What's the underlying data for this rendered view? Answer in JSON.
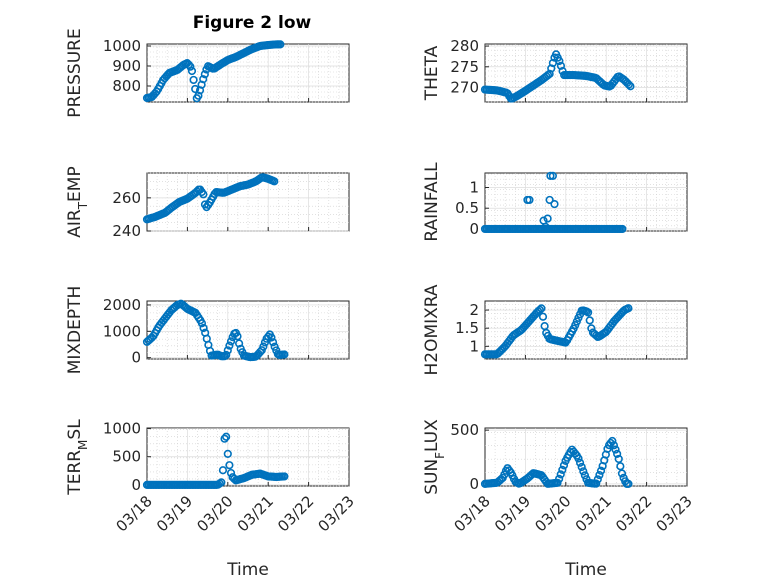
{
  "title": "Figure 2 low",
  "marker_color": "#0072BD",
  "chart_data": [
    {
      "type": "scatter",
      "ylabel": "PRESSURE",
      "xlabel": "",
      "xlim": [
        "03/18",
        "03/23"
      ],
      "ylim": [
        720,
        1010
      ],
      "yticks": [
        "800",
        "900",
        "1000"
      ],
      "xticks": [
        "03/18",
        "03/19",
        "03/20",
        "03/21",
        "03/22",
        "03/23"
      ],
      "keypoints": [
        [
          0,
          740
        ],
        [
          0.12,
          745
        ],
        [
          0.25,
          775
        ],
        [
          0.4,
          830
        ],
        [
          0.55,
          865
        ],
        [
          0.75,
          880
        ],
        [
          0.9,
          905
        ],
        [
          1.0,
          915
        ],
        [
          1.1,
          890
        ],
        [
          1.18,
          800
        ],
        [
          1.24,
          730
        ],
        [
          1.3,
          770
        ],
        [
          1.4,
          840
        ],
        [
          1.5,
          900
        ],
        [
          1.65,
          885
        ],
        [
          1.8,
          905
        ],
        [
          2.0,
          930
        ],
        [
          2.2,
          945
        ],
        [
          2.4,
          965
        ],
        [
          2.6,
          985
        ],
        [
          2.8,
          1000
        ],
        [
          3.0,
          1005
        ],
        [
          3.2,
          1008
        ],
        [
          3.3,
          1008
        ]
      ]
    },
    {
      "type": "scatter",
      "ylabel": "THETA",
      "xlabel": "",
      "xlim": [
        "03/18",
        "03/23"
      ],
      "ylim": [
        266.5,
        280.5
      ],
      "yticks": [
        "270",
        "275",
        "280"
      ],
      "xticks": [
        "03/18",
        "03/19",
        "03/20",
        "03/21",
        "03/22",
        "03/23"
      ],
      "keypoints": [
        [
          0,
          269.5
        ],
        [
          0.3,
          269.3
        ],
        [
          0.55,
          268.7
        ],
        [
          0.65,
          267.2
        ],
        [
          0.8,
          268.0
        ],
        [
          1.0,
          269.2
        ],
        [
          1.2,
          270.5
        ],
        [
          1.4,
          271.8
        ],
        [
          1.6,
          273.3
        ],
        [
          1.75,
          278.2
        ],
        [
          1.85,
          276.2
        ],
        [
          1.95,
          273.0
        ],
        [
          2.2,
          273.0
        ],
        [
          2.5,
          272.8
        ],
        [
          2.75,
          272.3
        ],
        [
          2.95,
          270.5
        ],
        [
          3.1,
          270.2
        ],
        [
          3.3,
          272.8
        ],
        [
          3.45,
          271.8
        ],
        [
          3.6,
          270.3
        ]
      ]
    },
    {
      "type": "scatter",
      "ylabel": "AIR_TEMP",
      "xlabel": "",
      "xlim": [
        "03/18",
        "03/23"
      ],
      "ylim": [
        240,
        275
      ],
      "yticks": [
        "240",
        "260"
      ],
      "xticks": [
        "03/18",
        "03/19",
        "03/20",
        "03/21",
        "03/22",
        "03/23"
      ],
      "keypoints": [
        [
          0,
          247
        ],
        [
          0.2,
          248.5
        ],
        [
          0.45,
          251
        ],
        [
          0.6,
          254
        ],
        [
          0.8,
          257.5
        ],
        [
          1.0,
          259.5
        ],
        [
          1.2,
          263
        ],
        [
          1.3,
          265.5
        ],
        [
          1.4,
          262
        ],
        [
          1.45,
          253.5
        ],
        [
          1.55,
          257
        ],
        [
          1.7,
          263.5
        ],
        [
          1.9,
          263
        ],
        [
          2.1,
          265
        ],
        [
          2.3,
          267
        ],
        [
          2.5,
          268
        ],
        [
          2.7,
          270
        ],
        [
          2.85,
          272.5
        ],
        [
          3.0,
          271.5
        ],
        [
          3.15,
          270
        ]
      ]
    },
    {
      "type": "scatter",
      "ylabel": "RAINFALL",
      "xlabel": "",
      "xlim": [
        "03/18",
        "03/23"
      ],
      "ylim": [
        -0.05,
        1.35
      ],
      "yticks": [
        "0",
        "0.5",
        "1"
      ],
      "xticks": [
        "03/18",
        "03/19",
        "03/20",
        "03/21",
        "03/22",
        "03/23"
      ],
      "keypoints": [
        [
          0,
          0
        ],
        [
          3.4,
          0
        ]
      ],
      "extra_points": [
        [
          1.05,
          0.7
        ],
        [
          1.1,
          0.7
        ],
        [
          1.45,
          0.2
        ],
        [
          1.55,
          0.25
        ],
        [
          1.6,
          0.7
        ],
        [
          1.62,
          1.28
        ],
        [
          1.68,
          1.28
        ],
        [
          1.72,
          0.6
        ],
        [
          1.5,
          0.05
        ]
      ]
    },
    {
      "type": "scatter",
      "ylabel": "MIXDEPTH",
      "xlabel": "",
      "xlim": [
        "03/18",
        "03/23"
      ],
      "ylim": [
        -50,
        2150
      ],
      "yticks": [
        "0",
        "1000",
        "2000"
      ],
      "xticks": [
        "03/18",
        "03/19",
        "03/20",
        "03/21",
        "03/22",
        "03/23"
      ],
      "keypoints": [
        [
          0,
          600
        ],
        [
          0.15,
          800
        ],
        [
          0.3,
          1200
        ],
        [
          0.45,
          1500
        ],
        [
          0.6,
          1800
        ],
        [
          0.75,
          2000
        ],
        [
          0.85,
          2050
        ],
        [
          1.0,
          1850
        ],
        [
          1.2,
          1700
        ],
        [
          1.35,
          1350
        ],
        [
          1.45,
          900
        ],
        [
          1.55,
          300
        ],
        [
          1.6,
          80
        ],
        [
          1.75,
          120
        ],
        [
          1.85,
          50
        ],
        [
          1.95,
          60
        ],
        [
          2.05,
          500
        ],
        [
          2.15,
          900
        ],
        [
          2.22,
          950
        ],
        [
          2.3,
          400
        ],
        [
          2.4,
          80
        ],
        [
          2.55,
          20
        ],
        [
          2.7,
          40
        ],
        [
          2.85,
          300
        ],
        [
          2.95,
          700
        ],
        [
          3.05,
          900
        ],
        [
          3.15,
          450
        ],
        [
          3.25,
          100
        ],
        [
          3.4,
          120
        ]
      ]
    },
    {
      "type": "scatter",
      "ylabel": "H2OMIXRA",
      "xlabel": "",
      "xlim": [
        "03/18",
        "03/23"
      ],
      "ylim": [
        0.65,
        2.25
      ],
      "yticks": [
        "1",
        "1.5",
        "2"
      ],
      "xticks": [
        "03/18",
        "03/19",
        "03/20",
        "03/21",
        "03/22",
        "03/23"
      ],
      "keypoints": [
        [
          0,
          0.78
        ],
        [
          0.3,
          0.78
        ],
        [
          0.5,
          1.0
        ],
        [
          0.7,
          1.3
        ],
        [
          0.9,
          1.45
        ],
        [
          1.1,
          1.7
        ],
        [
          1.3,
          1.95
        ],
        [
          1.4,
          2.05
        ],
        [
          1.5,
          1.4
        ],
        [
          1.6,
          1.2
        ],
        [
          1.8,
          1.15
        ],
        [
          2.0,
          1.1
        ],
        [
          2.2,
          1.5
        ],
        [
          2.4,
          2.0
        ],
        [
          2.55,
          1.95
        ],
        [
          2.65,
          1.4
        ],
        [
          2.8,
          1.25
        ],
        [
          3.0,
          1.4
        ],
        [
          3.2,
          1.7
        ],
        [
          3.45,
          2.0
        ],
        [
          3.55,
          2.05
        ]
      ]
    },
    {
      "type": "scatter",
      "ylabel": "TERR_MSL",
      "xlabel": "Time",
      "xlim": [
        "03/18",
        "03/23"
      ],
      "ylim": [
        -20,
        1010
      ],
      "yticks": [
        "0",
        "500",
        "1000"
      ],
      "xticks": [
        "03/18",
        "03/19",
        "03/20",
        "03/21",
        "03/22",
        "03/23"
      ],
      "keypoints": [
        [
          0,
          0
        ],
        [
          1.75,
          0
        ],
        [
          1.85,
          50
        ],
        [
          1.9,
          400
        ],
        [
          1.92,
          820
        ],
        [
          1.95,
          930
        ],
        [
          2.0,
          550
        ],
        [
          2.05,
          300
        ],
        [
          2.1,
          150
        ],
        [
          2.2,
          80
        ],
        [
          2.4,
          120
        ],
        [
          2.6,
          180
        ],
        [
          2.8,
          200
        ],
        [
          3.0,
          150
        ],
        [
          3.2,
          140
        ],
        [
          3.4,
          150
        ]
      ]
    },
    {
      "type": "scatter",
      "ylabel": "SUN_FLUX",
      "xlabel": "Time",
      "xlim": [
        "03/18",
        "03/23"
      ],
      "ylim": [
        -20,
        520
      ],
      "yticks": [
        "0",
        "500"
      ],
      "xticks": [
        "03/18",
        "03/19",
        "03/20",
        "03/21",
        "03/22",
        "03/23"
      ],
      "keypoints": [
        [
          0,
          0
        ],
        [
          0.3,
          10
        ],
        [
          0.45,
          60
        ],
        [
          0.55,
          150
        ],
        [
          0.65,
          100
        ],
        [
          0.75,
          20
        ],
        [
          0.85,
          0
        ],
        [
          1.05,
          50
        ],
        [
          1.2,
          100
        ],
        [
          1.4,
          80
        ],
        [
          1.55,
          0
        ],
        [
          1.8,
          10
        ],
        [
          2.0,
          220
        ],
        [
          2.15,
          320
        ],
        [
          2.3,
          250
        ],
        [
          2.45,
          100
        ],
        [
          2.55,
          10
        ],
        [
          2.75,
          0
        ],
        [
          2.9,
          150
        ],
        [
          3.05,
          350
        ],
        [
          3.15,
          400
        ],
        [
          3.3,
          250
        ],
        [
          3.4,
          80
        ],
        [
          3.5,
          0
        ],
        [
          3.55,
          0
        ]
      ]
    }
  ]
}
